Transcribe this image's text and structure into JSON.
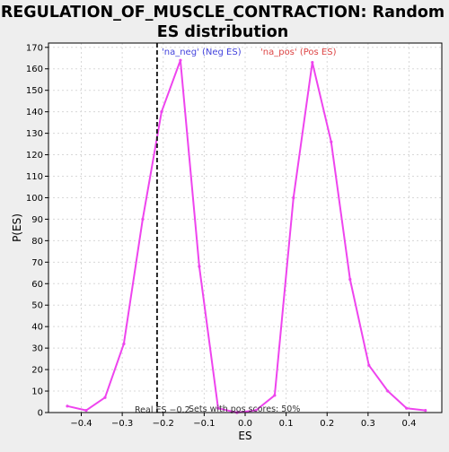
{
  "chart_data": {
    "type": "line",
    "title": "REGULATION_OF_MUSCLE_CONTRACTION: Random ES distribution",
    "title_lines": [
      "REGULATION_OF_MUSCLE_CONTRACTION: Random",
      "ES distribution"
    ],
    "xlabel": "ES",
    "ylabel": "P(ES)",
    "xlim": [
      -0.48,
      0.48
    ],
    "ylim": [
      0,
      172
    ],
    "xticks": [
      -0.4,
      -0.3,
      -0.2,
      -0.1,
      0.0,
      0.1,
      0.2,
      0.3,
      0.4
    ],
    "xtick_labels": [
      "−0.4",
      "−0.3",
      "−0.2",
      "−0.1",
      "0.0",
      "0.1",
      "0.2",
      "0.3",
      "0.4"
    ],
    "yticks": [
      0,
      10,
      20,
      30,
      40,
      50,
      60,
      70,
      80,
      90,
      100,
      110,
      120,
      130,
      140,
      150,
      160,
      170
    ],
    "grid": true,
    "series": [
      {
        "color": "#ee44ee",
        "x": [
          -0.434,
          -0.388,
          -0.342,
          -0.296,
          -0.25,
          -0.204,
          -0.158,
          -0.112,
          -0.066,
          -0.02,
          0.026,
          0.072,
          0.118,
          0.164,
          0.21,
          0.256,
          0.302,
          0.348,
          0.394,
          0.44
        ],
        "y": [
          3,
          1,
          7,
          32,
          90,
          140,
          164,
          68,
          2,
          0,
          1,
          8,
          100,
          163,
          126,
          62,
          22,
          10,
          2,
          1
        ]
      }
    ],
    "annotations": {
      "neg_label": "'na_neg' (Neg ES)",
      "pos_label": "'na_pos' (Pos ES)",
      "real_es_label": "Real ES −0.2",
      "real_es_value": -0.215,
      "sets_label": "Sets with pos scores: 50%"
    },
    "colors": {
      "line": "#ee44ee",
      "neg_text": "#4444dd",
      "pos_text": "#dd4444",
      "grid": "#d8d8d8",
      "axes": "#000000"
    }
  }
}
